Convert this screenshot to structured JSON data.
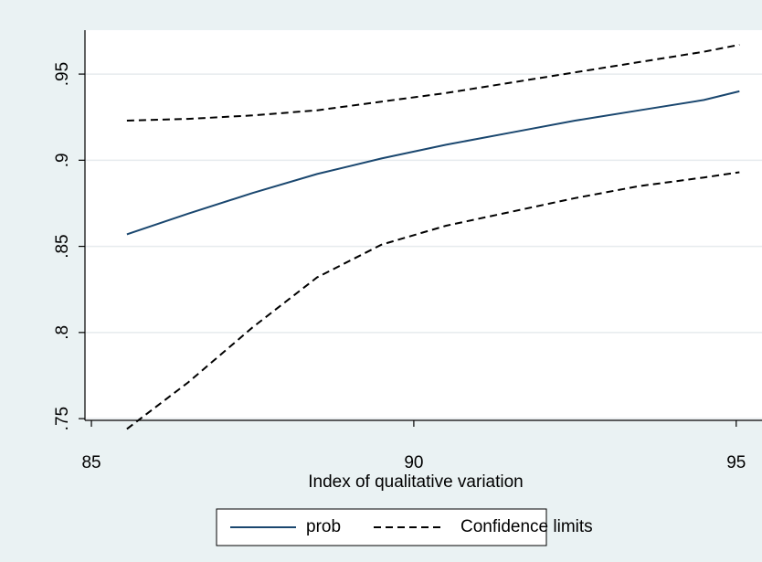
{
  "chart_data": {
    "type": "line",
    "x_label": "Index of qualitative variation",
    "x": [
      85.55,
      86.5,
      87.5,
      88.5,
      89.5,
      90.5,
      91.5,
      92.5,
      93.5,
      94.5,
      95.05
    ],
    "series": [
      {
        "name": "prob",
        "color": "#1a476f",
        "dash": false,
        "values": [
          0.857,
          0.869,
          0.881,
          0.892,
          0.901,
          0.909,
          0.916,
          0.923,
          0.929,
          0.935,
          0.94
        ]
      },
      {
        "name": "Confidence limits",
        "color": "#000000",
        "dash": true,
        "values": [
          0.923,
          0.924,
          0.926,
          0.929,
          0.934,
          0.939,
          0.945,
          0.951,
          0.957,
          0.963,
          0.967
        ]
      },
      {
        "color": "#000000",
        "dash": true,
        "values": [
          0.744,
          0.771,
          0.803,
          0.832,
          0.851,
          0.862,
          0.87,
          0.878,
          0.885,
          0.89,
          0.893
        ]
      }
    ],
    "xlim": [
      84.9,
      95.4
    ],
    "xticks": [
      85,
      90,
      95
    ],
    "ylim": [
      0.749,
      0.9755
    ],
    "yticks": [
      {
        "value": 0.75,
        "label": ".75"
      },
      {
        "value": 0.8,
        "label": ".8"
      },
      {
        "value": 0.85,
        "label": ".85"
      },
      {
        "value": 0.9,
        "label": ".9"
      },
      {
        "value": 0.95,
        "label": ".95"
      }
    ],
    "grid": true,
    "legend": "bottom"
  }
}
